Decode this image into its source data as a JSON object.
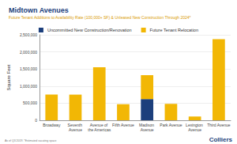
{
  "chart_data": {
    "type": "bar",
    "title": "Midtown Avenues",
    "subtitle": "Future Tenant Additions to Availability Rate (100,000+ SF) & Unleased New Construction Through 2024*",
    "y_label": "Square Feet",
    "categories": [
      "Broadway",
      "Seventh Avenue",
      "Avenue of the Americas",
      "Fifth Avenue",
      "Madison Avenue",
      "Park Avenue",
      "Lexington Avenue",
      "Third Avenue"
    ],
    "series": [
      {
        "name": "Uncommitted New Construction/Renovation",
        "color": "#1c3f7c",
        "values": [
          0,
          0,
          0,
          0,
          620000,
          0,
          0,
          0
        ]
      },
      {
        "name": "Future Tenant Relocation",
        "color": "#f2b705",
        "values": [
          750000,
          750000,
          1550000,
          470000,
          700000,
          480000,
          110000,
          2370000
        ]
      }
    ],
    "stacked": true,
    "ylim": [
      0,
      2500000
    ],
    "yticks": [
      0,
      {
        "value": 500000,
        "label": "500,000"
      },
      {
        "value": 1000000,
        "label": "1,000,000"
      },
      {
        "value": 1500000,
        "label": "1,500,000"
      },
      {
        "value": 2000000,
        "label": "2,000,000"
      },
      {
        "value": 2500000,
        "label": "2,500,000"
      }
    ],
    "grid": true,
    "legend": "top",
    "footnote": "As of Q3 2019. *Estimated vacating space",
    "logo": "Colliers"
  }
}
